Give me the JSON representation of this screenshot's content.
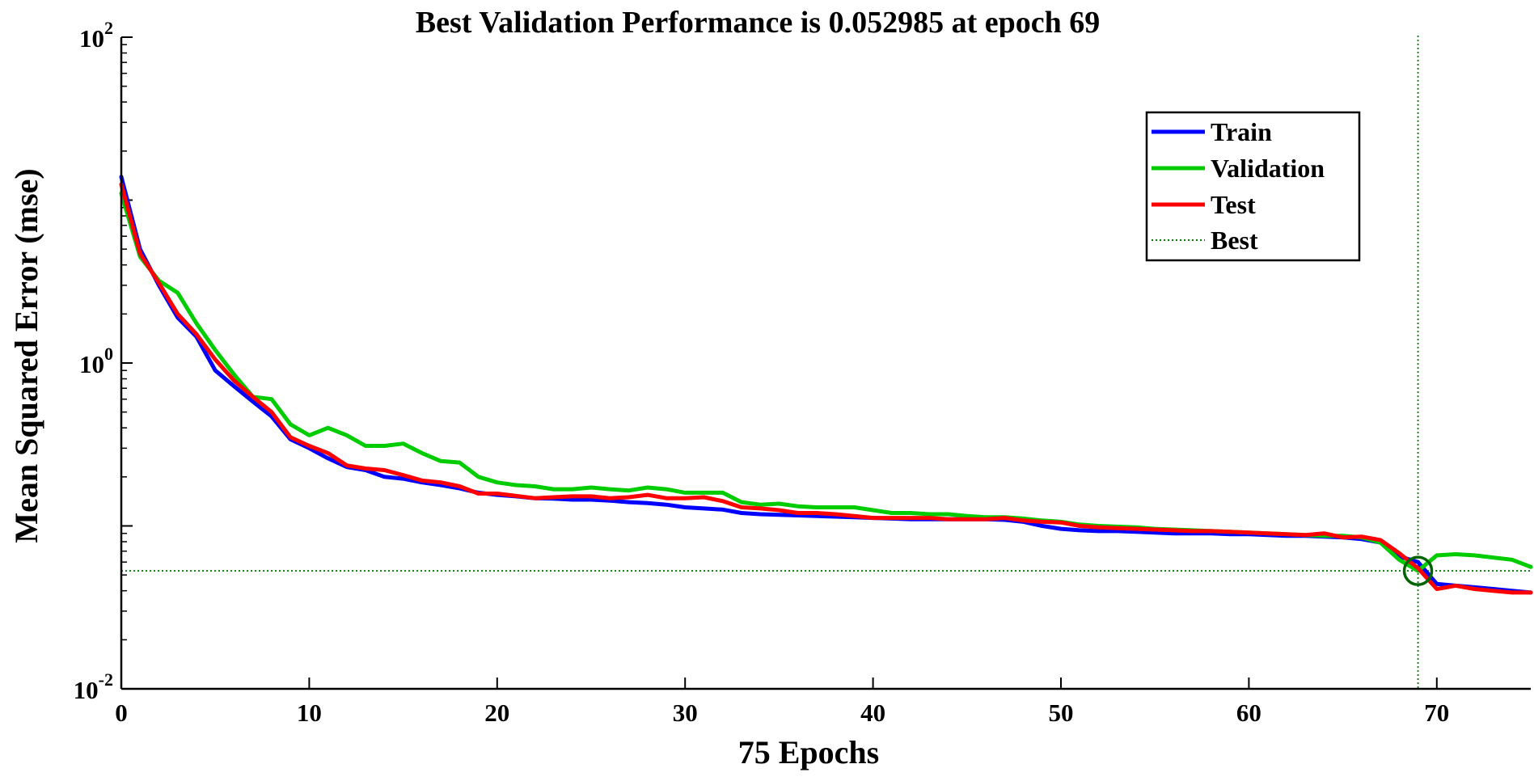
{
  "chart_data": {
    "type": "line",
    "title": "Best Validation Performance is 0.052985 at epoch 69",
    "xlabel": "75 Epochs",
    "ylabel": "Mean Squared Error  (mse)",
    "yscale": "log",
    "xlim": [
      0,
      75
    ],
    "ylim": [
      0.01,
      100
    ],
    "xticks": [
      0,
      10,
      20,
      30,
      40,
      50,
      60,
      70
    ],
    "xtick_labels": [
      "0",
      "10",
      "20",
      "30",
      "40",
      "50",
      "60",
      "70"
    ],
    "yticks": [
      {
        "value": 0.01,
        "base": "10",
        "exp": "-2"
      },
      {
        "value": 1,
        "base": "10",
        "exp": "0"
      },
      {
        "value": 100,
        "base": "10",
        "exp": "2"
      }
    ],
    "legend_position": "top-right",
    "best": {
      "label": "Best",
      "epoch": 69,
      "value": 0.052985,
      "color": "#008000"
    },
    "x": [
      0,
      1,
      2,
      3,
      4,
      5,
      6,
      7,
      8,
      9,
      10,
      11,
      12,
      13,
      14,
      15,
      16,
      17,
      18,
      19,
      20,
      21,
      22,
      23,
      24,
      25,
      26,
      27,
      28,
      29,
      30,
      31,
      32,
      33,
      34,
      35,
      36,
      37,
      38,
      39,
      40,
      41,
      42,
      43,
      44,
      45,
      46,
      47,
      48,
      49,
      50,
      51,
      52,
      53,
      54,
      55,
      56,
      57,
      58,
      59,
      60,
      61,
      62,
      63,
      64,
      65,
      66,
      67,
      68,
      69,
      70,
      71,
      72,
      73,
      74,
      75
    ],
    "series": [
      {
        "name": "Train",
        "color": "#0000ff",
        "values": [
          13.9,
          5.0,
          3.0,
          1.9,
          1.45,
          0.9,
          0.72,
          0.58,
          0.47,
          0.34,
          0.3,
          0.26,
          0.23,
          0.22,
          0.2,
          0.195,
          0.185,
          0.178,
          0.17,
          0.16,
          0.155,
          0.152,
          0.148,
          0.147,
          0.145,
          0.145,
          0.143,
          0.14,
          0.138,
          0.135,
          0.13,
          0.128,
          0.126,
          0.12,
          0.118,
          0.117,
          0.116,
          0.115,
          0.114,
          0.113,
          0.112,
          0.111,
          0.11,
          0.11,
          0.11,
          0.11,
          0.11,
          0.109,
          0.106,
          0.1,
          0.096,
          0.094,
          0.093,
          0.093,
          0.092,
          0.091,
          0.09,
          0.09,
          0.09,
          0.089,
          0.089,
          0.088,
          0.087,
          0.087,
          0.086,
          0.085,
          0.083,
          0.079,
          0.065,
          0.06,
          0.044,
          0.043,
          0.042,
          0.041,
          0.04,
          0.039
        ]
      },
      {
        "name": "Validation",
        "color": "#00cc00",
        "values": [
          11.0,
          4.5,
          3.2,
          2.7,
          1.75,
          1.2,
          0.85,
          0.62,
          0.6,
          0.42,
          0.36,
          0.4,
          0.36,
          0.31,
          0.31,
          0.32,
          0.28,
          0.25,
          0.245,
          0.2,
          0.185,
          0.178,
          0.175,
          0.168,
          0.168,
          0.172,
          0.168,
          0.165,
          0.172,
          0.168,
          0.16,
          0.16,
          0.16,
          0.14,
          0.135,
          0.137,
          0.132,
          0.13,
          0.13,
          0.13,
          0.125,
          0.12,
          0.12,
          0.118,
          0.118,
          0.115,
          0.113,
          0.113,
          0.111,
          0.108,
          0.106,
          0.102,
          0.1,
          0.099,
          0.098,
          0.096,
          0.095,
          0.094,
          0.093,
          0.092,
          0.091,
          0.09,
          0.089,
          0.088,
          0.087,
          0.087,
          0.085,
          0.079,
          0.062,
          0.053,
          0.066,
          0.067,
          0.066,
          0.064,
          0.062,
          0.056
        ]
      },
      {
        "name": "Test",
        "color": "#ff0000",
        "values": [
          12.5,
          4.7,
          3.1,
          2.0,
          1.5,
          1.05,
          0.78,
          0.62,
          0.5,
          0.35,
          0.31,
          0.28,
          0.235,
          0.225,
          0.22,
          0.205,
          0.19,
          0.185,
          0.175,
          0.158,
          0.158,
          0.153,
          0.148,
          0.15,
          0.152,
          0.152,
          0.148,
          0.15,
          0.155,
          0.148,
          0.148,
          0.15,
          0.142,
          0.13,
          0.128,
          0.125,
          0.12,
          0.12,
          0.118,
          0.115,
          0.112,
          0.112,
          0.112,
          0.112,
          0.11,
          0.11,
          0.11,
          0.112,
          0.108,
          0.106,
          0.105,
          0.1,
          0.098,
          0.097,
          0.096,
          0.095,
          0.094,
          0.093,
          0.093,
          0.092,
          0.091,
          0.09,
          0.089,
          0.088,
          0.09,
          0.085,
          0.086,
          0.082,
          0.068,
          0.055,
          0.041,
          0.043,
          0.041,
          0.04,
          0.039,
          0.039
        ]
      }
    ]
  }
}
